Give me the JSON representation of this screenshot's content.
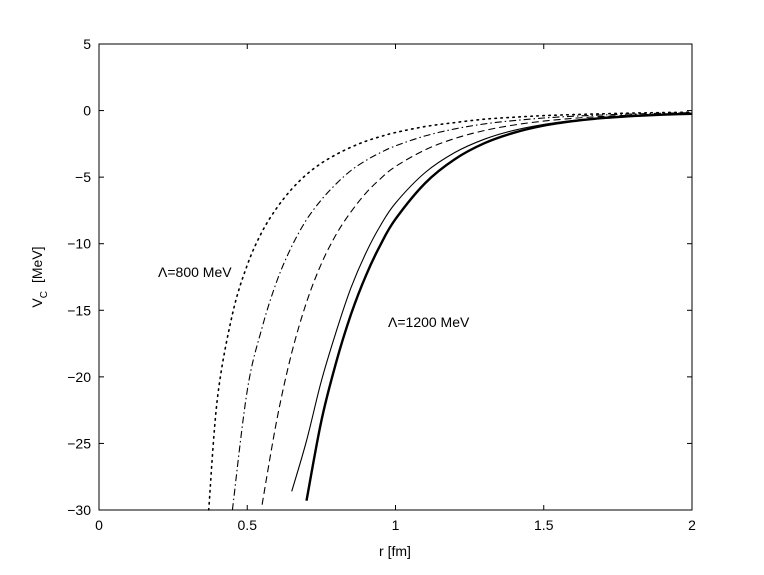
{
  "chart_data": {
    "type": "line",
    "xlabel": "r   [fm]",
    "ylabel_main": "V",
    "ylabel_sub": "C",
    "ylabel_unit": "[MeV]",
    "xlim": [
      0,
      2
    ],
    "ylim": [
      -30,
      5
    ],
    "xticks": [
      0,
      0.5,
      1,
      1.5,
      2
    ],
    "xtick_labels": [
      "0",
      "0.5",
      "1",
      "1.5",
      "2"
    ],
    "yticks": [
      5,
      0,
      -5,
      -10,
      -15,
      -20,
      -25,
      -30
    ],
    "ytick_labels": [
      "5",
      "0",
      "−5",
      "−10",
      "−15",
      "−20",
      "−25",
      "−30"
    ],
    "grid": false,
    "annotations": [
      {
        "text": "Λ=800 MeV",
        "x": 0.2,
        "y": -12.5
      },
      {
        "text": "Λ=1200 MeV",
        "x": 0.97,
        "y": -16.3
      }
    ],
    "x": [
      0.37,
      0.4,
      0.45,
      0.5,
      0.55,
      0.6,
      0.65,
      0.7,
      0.75,
      0.8,
      0.85,
      0.9,
      0.95,
      1.0,
      1.1,
      1.2,
      1.3,
      1.4,
      1.5,
      1.6,
      1.7,
      1.8,
      1.9,
      2.0
    ],
    "series": [
      {
        "style": "dotted",
        "values": [
          -30.0,
          -21.5,
          -15.3,
          -11.6,
          -9.1,
          -7.3,
          -5.9,
          -4.8,
          -3.95,
          -3.3,
          -2.75,
          -2.3,
          -1.95,
          -1.65,
          -1.2,
          -0.9,
          -0.65,
          -0.5,
          -0.38,
          -0.3,
          -0.24,
          -0.19,
          -0.15,
          -0.12
        ]
      },
      {
        "style": "dashdot",
        "values": [
          null,
          null,
          -30.0,
          -21.0,
          -16.3,
          -12.8,
          -10.2,
          -8.2,
          -6.7,
          -5.5,
          -4.5,
          -3.75,
          -3.15,
          -2.65,
          -1.9,
          -1.38,
          -1.0,
          -0.75,
          -0.56,
          -0.42,
          -0.33,
          -0.26,
          -0.2,
          -0.16
        ]
      },
      {
        "style": "dashed",
        "values": [
          null,
          null,
          null,
          null,
          -29.6,
          -23.2,
          -18.2,
          -14.4,
          -11.5,
          -9.3,
          -7.6,
          -6.2,
          -5.1,
          -4.2,
          -2.95,
          -2.1,
          -1.5,
          -1.08,
          -0.79,
          -0.58,
          -0.44,
          -0.34,
          -0.26,
          -0.2
        ]
      },
      {
        "style": "solid-thin",
        "values": [
          null,
          null,
          null,
          null,
          null,
          null,
          -28.6,
          -24.8,
          -20.3,
          -16.6,
          -13.3,
          -10.7,
          -8.6,
          -6.95,
          -4.65,
          -3.15,
          -2.15,
          -1.48,
          -1.04,
          -0.74,
          -0.54,
          -0.4,
          -0.3,
          -0.23
        ]
      },
      {
        "style": "solid-thick",
        "values": [
          null,
          null,
          null,
          null,
          null,
          null,
          null,
          -29.3,
          -23.3,
          -18.9,
          -15.3,
          -12.4,
          -10.05,
          -8.15,
          -5.45,
          -3.65,
          -2.45,
          -1.66,
          -1.13,
          -0.79,
          -0.56,
          -0.41,
          -0.31,
          -0.24
        ]
      }
    ]
  }
}
